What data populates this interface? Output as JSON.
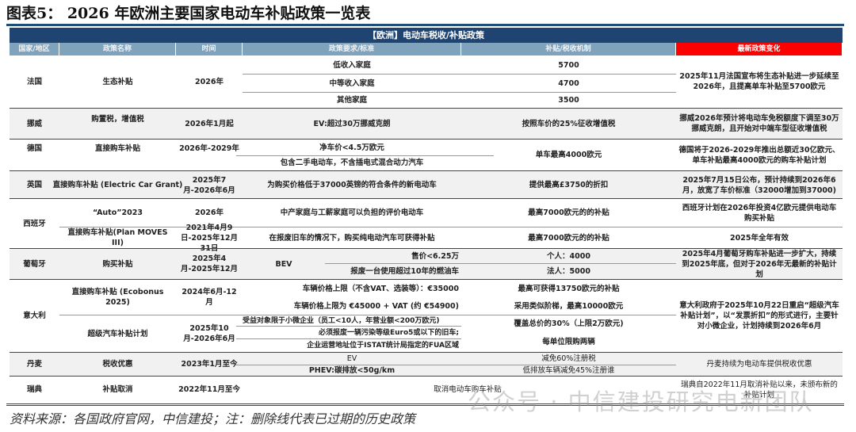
{
  "title": "图表5： 2026 年欧洲主要国家电动车补贴政策一览表",
  "banner": "【欧洲】电动车税收/补贴政策",
  "headers": [
    "国家/地区",
    "政策名称",
    "时间",
    "政策要求/标准",
    "补贴/税收机制",
    "最新政策变化"
  ],
  "accent_color": "#ff0000",
  "header_color": "#1f4472",
  "rows": {
    "france": {
      "country": "法国",
      "policy": "生态补贴",
      "time": "2026年",
      "reqs": [
        "低收入家庭",
        "中等收入家庭",
        "其他家庭"
      ],
      "mech": [
        "5700",
        "4700",
        "3500"
      ],
      "latest": "2025年11月法国宣布将生态补贴进一步延续至2026年，且提高单车补贴至5700欧元"
    },
    "norway": {
      "country": "挪威",
      "policy": "购置税，增值税",
      "time": "2026年1月起",
      "req": "EV:超过30万挪威克朗",
      "mech": "按照车价的25%征收增值税",
      "latest": "挪威2026年预计将电动车免税额度下调至30万挪威克朗，且开始对中端车型征收增值税"
    },
    "germany": {
      "country": "德国",
      "policy": "直接购车补贴",
      "time": "2026年-2029年",
      "reqs": [
        "净车价<4.5万欧元",
        "包含二手电动车，不含插电式混合动力汽车"
      ],
      "mech": "单车最高4000欧元",
      "latest": "德国将于2026-2029年推出总额近30亿欧元、单车补贴最高4000欧元的购车补贴计划"
    },
    "uk": {
      "country": "英国",
      "policy": "直接购车补贴 (Electric Car Grant)",
      "time": "2025年7月-2026年6月",
      "req": "为购买价格低于37000英镑的符合条件的新电动车",
      "mech": "提供最高£3750的折扣",
      "latest": "2025年7月15日公布，预计持续到2026年6月，放宽了车价标准（32000增加到37000)"
    },
    "spain": {
      "country": "西班牙",
      "items": [
        {
          "policy": "“Auto”2023",
          "time": "2026年",
          "req": "中产家庭与工薪家庭可以负担的评价电动车",
          "mech": "最高7000欧元的的补贴",
          "latest": "西班牙计划在2026年投资4亿欧元提供电动车购买补贴"
        },
        {
          "policy": "直接购车补贴(Plan MOVES III)",
          "time": "2021年4月9日-2025年12月31日",
          "req": "在报废旧车的情况下，购买纯电动汽车可获得补贴",
          "mech": "最高7000欧元的的补贴",
          "latest": "2025年全年有效"
        }
      ]
    },
    "portugal": {
      "country": "葡萄牙",
      "policy": "购买补贴",
      "time": "2025年4月-2025年12月",
      "req_type": "BEV",
      "reqs": [
        "售价<6.25万",
        "报废一台使用超过10年的燃油车"
      ],
      "mech": [
        "个人：4000",
        "法人：5000"
      ],
      "latest": "2025年4月葡萄牙购车补贴进一步扩大，持续到2025年底，但对于2026年无最新的补贴计划"
    },
    "italy": {
      "country": "意大利",
      "latest": "意大利政府于2025年10月22日重启“超级汽车补贴计划”，以“发票折扣”的形式进行，主要针对小微企业，计划持续到2026年6月",
      "items": [
        {
          "policy": "直接购车补贴 (Ecobonus 2025)",
          "time": "2024年6月-12月",
          "reqs": [
            "车辆价格上限（不含VAT、选装等）：€35000",
            "车辆价格上限为 €45000 + VAT (约 €54900)"
          ],
          "mech": [
            "最高可获得13750欧元的补贴",
            "采用类似阶梯，最高10000欧元"
          ]
        },
        {
          "policy": "超级汽车补贴计划",
          "time": "2025年10月-2026年6月",
          "reqs": [
            "受益对象限于小微企业（员工<10人，年营业额<200万欧元)",
            "必须报废一辆污染等级Euro5或以下的旧车;",
            "企业运营地址位于ISTAT统计局指定的FUA区域"
          ],
          "mech": [
            "覆盖总价的30%（上限2万欧元)",
            "每单位限购两辆"
          ]
        }
      ]
    },
    "denmark": {
      "country": "丹麦",
      "policy": "税收优惠",
      "time": "2023年1月至今",
      "reqs": [
        "EV",
        "PHEV:碳排放<50g/km"
      ],
      "mech": [
        "减免60%注册税",
        "低排放车辆减免45%注册谁"
      ],
      "latest": "丹麦持续为电动车提供税收优惠"
    },
    "sweden": {
      "country": "瑞典",
      "policy": "补贴取消",
      "time": "2022年11月至今",
      "mech": "取消电动车购车补贴",
      "latest": "瑞典自2022年11月取消补贴以来，未颁布新的补贴计划"
    }
  },
  "source": "资料来源：各国政府官网，中信建投；注：删除线代表已过期的历史政策",
  "watermark": "公众号 · 中信建投研究电新团队"
}
